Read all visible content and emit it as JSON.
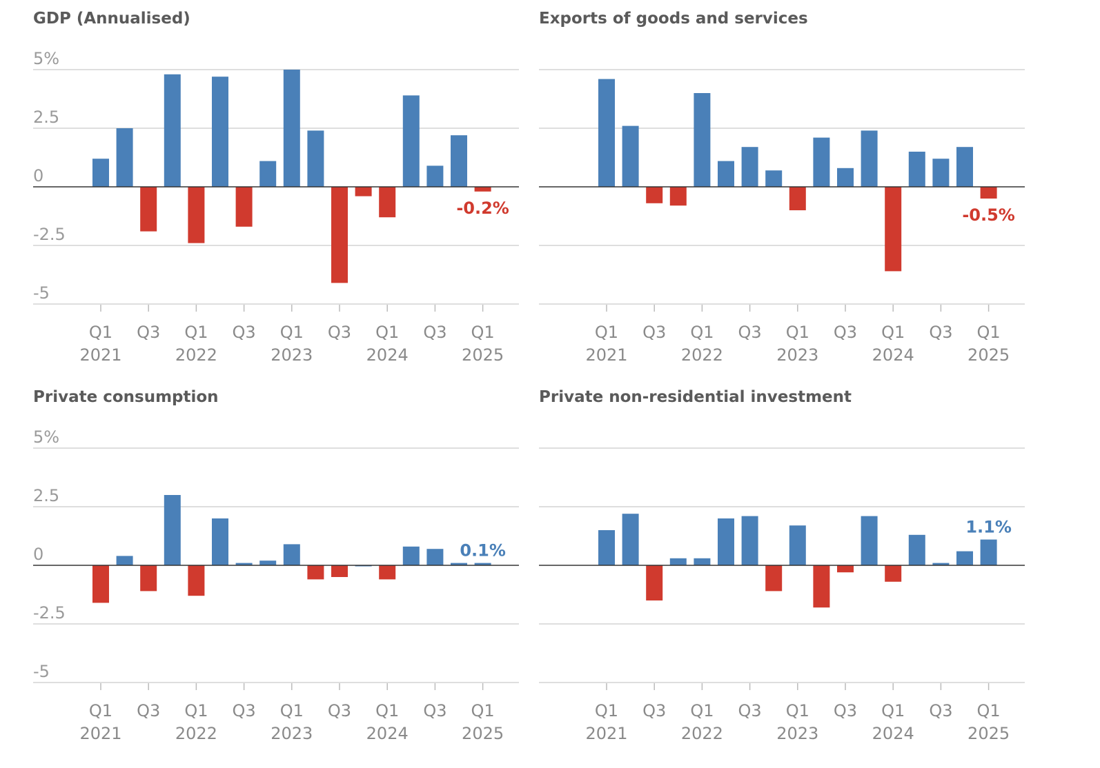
{
  "colors": {
    "positive": "#4a80b8",
    "negative": "#d03a2e"
  },
  "chart_data": [
    {
      "type": "bar",
      "title": "GDP (Annualised)",
      "ylim": [
        -5,
        5
      ],
      "yticks": [
        "5%",
        "2.5",
        "0",
        "-2.5",
        "-5"
      ],
      "xtick_quarters": [
        "Q1",
        "Q3",
        "Q1",
        "Q3",
        "Q1",
        "Q3",
        "Q1",
        "Q3",
        "Q1"
      ],
      "xtick_years": [
        "2021",
        "",
        "2022",
        "",
        "2023",
        "",
        "2024",
        "",
        "2025"
      ],
      "categories": [
        "Q1 2021",
        "Q2 2021",
        "Q3 2021",
        "Q4 2021",
        "Q1 2022",
        "Q2 2022",
        "Q3 2022",
        "Q4 2022",
        "Q1 2023",
        "Q2 2023",
        "Q3 2023",
        "Q4 2023",
        "Q1 2024",
        "Q2 2024",
        "Q3 2024",
        "Q4 2024",
        "Q1 2025"
      ],
      "values": [
        1.2,
        2.5,
        -1.9,
        4.8,
        -2.4,
        4.7,
        -1.7,
        1.1,
        5.0,
        2.4,
        -4.1,
        -0.4,
        -1.3,
        3.9,
        0.9,
        2.2,
        -0.2
      ],
      "label": "-0.2%",
      "label_color": "#d03a2e",
      "show_yticks": true
    },
    {
      "type": "bar",
      "title": "Exports of goods and services",
      "ylim": [
        -5,
        5
      ],
      "yticks": [
        "",
        "",
        "",
        "",
        ""
      ],
      "xtick_quarters": [
        "Q1",
        "Q3",
        "Q1",
        "Q3",
        "Q1",
        "Q3",
        "Q1",
        "Q3",
        "Q1"
      ],
      "xtick_years": [
        "2021",
        "",
        "2022",
        "",
        "2023",
        "",
        "2024",
        "",
        "2025"
      ],
      "categories": [
        "Q1 2021",
        "Q2 2021",
        "Q3 2021",
        "Q4 2021",
        "Q1 2022",
        "Q2 2022",
        "Q3 2022",
        "Q4 2022",
        "Q1 2023",
        "Q2 2023",
        "Q3 2023",
        "Q4 2023",
        "Q1 2024",
        "Q2 2024",
        "Q3 2024",
        "Q4 2024",
        "Q1 2025"
      ],
      "values": [
        4.6,
        2.6,
        -0.7,
        -0.8,
        4.0,
        1.1,
        1.7,
        0.7,
        -1.0,
        2.1,
        0.8,
        2.4,
        -3.6,
        1.5,
        1.2,
        1.7,
        -0.5
      ],
      "label": "-0.5%",
      "label_color": "#d03a2e",
      "show_yticks": false
    },
    {
      "type": "bar",
      "title": "Private consumption",
      "ylim": [
        -5,
        5
      ],
      "yticks": [
        "5%",
        "2.5",
        "0",
        "-2.5",
        "-5"
      ],
      "xtick_quarters": [
        "Q1",
        "Q3",
        "Q1",
        "Q3",
        "Q1",
        "Q3",
        "Q1",
        "Q3",
        "Q1"
      ],
      "xtick_years": [
        "2021",
        "",
        "2022",
        "",
        "2023",
        "",
        "2024",
        "",
        "2025"
      ],
      "categories": [
        "Q1 2021",
        "Q2 2021",
        "Q3 2021",
        "Q4 2021",
        "Q1 2022",
        "Q2 2022",
        "Q3 2022",
        "Q4 2022",
        "Q1 2023",
        "Q2 2023",
        "Q3 2023",
        "Q4 2023",
        "Q1 2024",
        "Q2 2024",
        "Q3 2024",
        "Q4 2024",
        "Q1 2025"
      ],
      "values": [
        -1.6,
        0.4,
        -1.1,
        3.0,
        -1.3,
        2.0,
        0.1,
        0.2,
        0.9,
        -0.6,
        -0.5,
        0.0,
        -0.6,
        0.8,
        0.7,
        0.1,
        0.1
      ],
      "label": "0.1%",
      "label_color": "#4a80b8",
      "show_yticks": true
    },
    {
      "type": "bar",
      "title": "Private non-residential investment",
      "ylim": [
        -5,
        5
      ],
      "yticks": [
        "",
        "",
        "",
        "",
        ""
      ],
      "xtick_quarters": [
        "Q1",
        "Q3",
        "Q1",
        "Q3",
        "Q1",
        "Q3",
        "Q1",
        "Q3",
        "Q1"
      ],
      "xtick_years": [
        "2021",
        "",
        "2022",
        "",
        "2023",
        "",
        "2024",
        "",
        "2025"
      ],
      "categories": [
        "Q1 2021",
        "Q2 2021",
        "Q3 2021",
        "Q4 2021",
        "Q1 2022",
        "Q2 2022",
        "Q3 2022",
        "Q4 2022",
        "Q1 2023",
        "Q2 2023",
        "Q3 2023",
        "Q4 2023",
        "Q1 2024",
        "Q2 2024",
        "Q3 2024",
        "Q4 2024",
        "Q1 2025"
      ],
      "values": [
        1.5,
        2.2,
        -1.5,
        0.3,
        0.3,
        2.0,
        2.1,
        -1.1,
        1.7,
        -1.8,
        -0.3,
        2.1,
        -0.7,
        1.3,
        0.1,
        0.6,
        1.1
      ],
      "label": "1.1%",
      "label_color": "#4a80b8",
      "show_yticks": false
    }
  ]
}
